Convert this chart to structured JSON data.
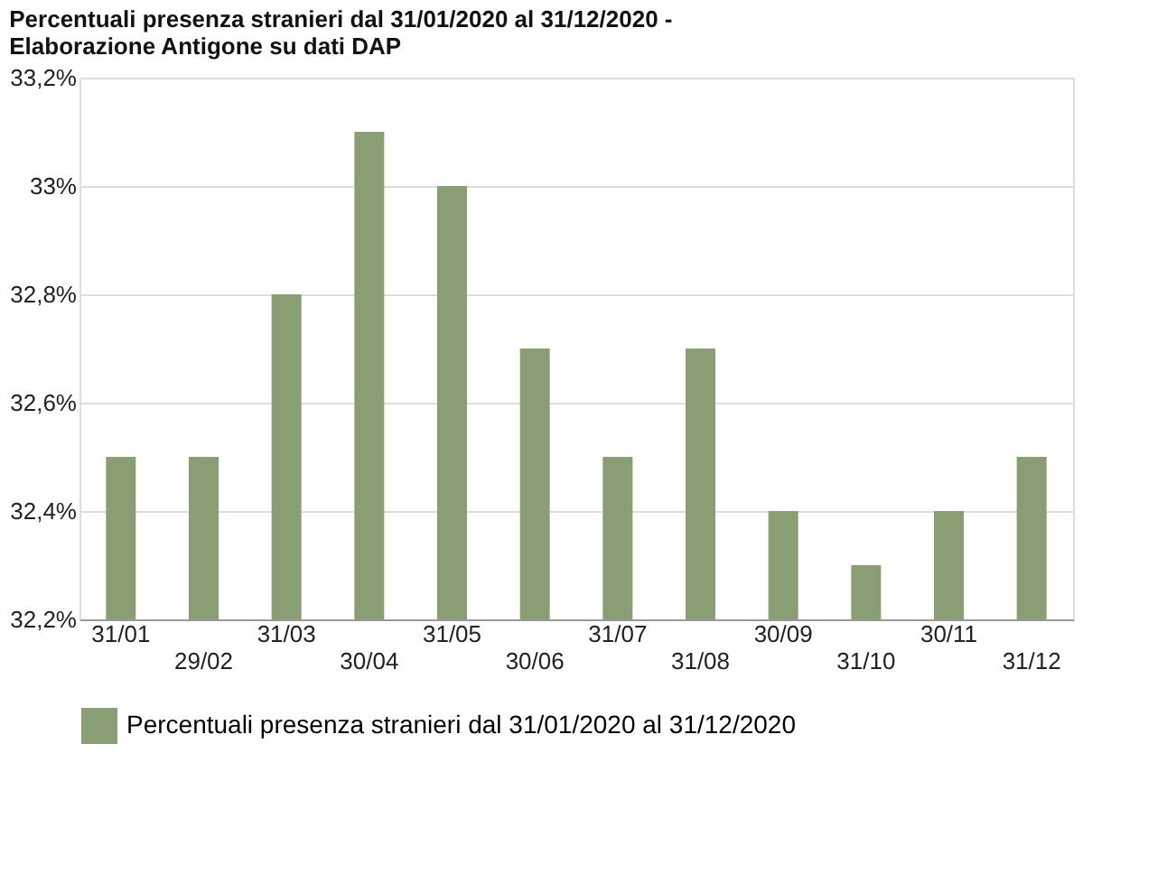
{
  "chart_data": {
    "type": "bar",
    "title": "Percentuali presenza stranieri dal 31/01/2020 al 31/12/2020 -\nElaborazione Antigone su dati DAP",
    "categories": [
      "31/01",
      "29/02",
      "31/03",
      "30/04",
      "31/05",
      "30/06",
      "31/07",
      "31/08",
      "30/09",
      "31/10",
      "30/11",
      "31/12"
    ],
    "series": [
      {
        "name": "Percentuali presenza stranieri dal 31/01/2020 al 31/12/2020",
        "color": "#8a9e74",
        "values": [
          32.5,
          32.5,
          32.8,
          33.1,
          33.0,
          32.7,
          32.5,
          32.7,
          32.4,
          32.3,
          32.4,
          32.5
        ]
      }
    ],
    "ylim": [
      32.2,
      33.2
    ],
    "yticks": [
      {
        "value": 32.2,
        "label": "32,2%"
      },
      {
        "value": 32.4,
        "label": "32,4%"
      },
      {
        "value": 32.6,
        "label": "32,6%"
      },
      {
        "value": 32.8,
        "label": "32,8%"
      },
      {
        "value": 33.0,
        "label": "33%"
      },
      {
        "value": 33.2,
        "label": "33,2%"
      }
    ],
    "grid": "y",
    "legend": "bottom"
  }
}
